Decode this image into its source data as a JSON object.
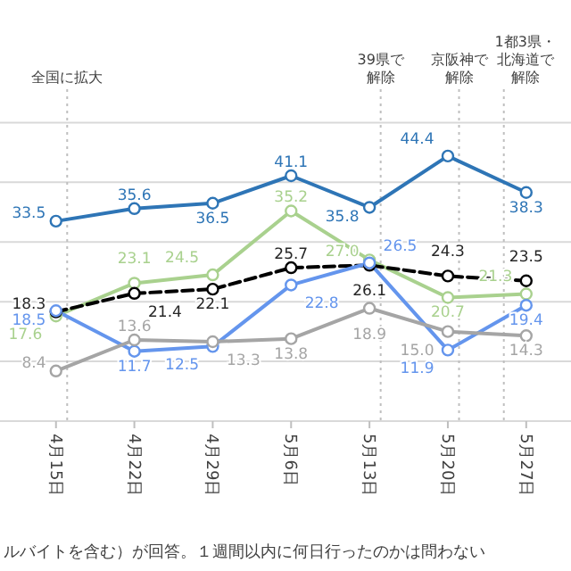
{
  "chart_data": {
    "type": "line",
    "x": [
      "--04-15",
      "--04-22",
      "--04-29",
      "--05-06",
      "--05-13",
      "--05-20",
      "--05-27"
    ],
    "xlim": [
      "--04-10",
      "--05-31"
    ],
    "xticks": [
      {
        "value": "--04-15",
        "label": "4月15日"
      },
      {
        "value": "--04-22",
        "label": "4月22日"
      },
      {
        "value": "--04-29",
        "label": "4月29日"
      },
      {
        "value": "--05-06",
        "label": "5月6日"
      },
      {
        "value": "--05-13",
        "label": "5月13日"
      },
      {
        "value": "--05-20",
        "label": "5月20日"
      },
      {
        "value": "--05-27",
        "label": "5月27日"
      }
    ],
    "ylim": [
      0,
      55
    ],
    "yticks": [
      {
        "value": 0,
        "label": null
      },
      {
        "value": 10,
        "label": null
      },
      {
        "value": 20,
        "label": null
      },
      {
        "value": 30,
        "label": null
      },
      {
        "value": 40,
        "label": null
      },
      {
        "value": 50,
        "label": null
      }
    ],
    "tick_labels": "x",
    "grid": "y",
    "series": [
      {
        "color": "#2e75b6",
        "marker": "circle",
        "line_style": "solid",
        "values": [
          33.5,
          35.6,
          36.5,
          41.1,
          35.8,
          44.4,
          38.3
        ],
        "value_labels": [
          "33.5",
          "35.6",
          "36.5",
          "41.1",
          "35.8",
          "44.4",
          "38.3"
        ]
      },
      {
        "color": "#a9d18e",
        "marker": "circle",
        "line_style": "solid",
        "values": [
          17.6,
          23.1,
          24.5,
          35.2,
          27.0,
          20.7,
          21.3
        ],
        "value_labels": [
          "17.6",
          "23.1",
          "24.5",
          "35.2",
          "27.0",
          "20.7",
          "21.3"
        ]
      },
      {
        "color": "#000000",
        "marker": "circle",
        "line_style": "dashed",
        "values": [
          18.3,
          21.4,
          22.1,
          25.7,
          26.1,
          24.3,
          23.5
        ],
        "value_labels": [
          "18.3",
          "21.4",
          "22.1",
          "25.7",
          "26.1",
          "24.3",
          "23.5"
        ]
      },
      {
        "color": "#6495ed",
        "marker": "circle",
        "line_style": "solid",
        "values": [
          18.5,
          11.7,
          12.5,
          22.8,
          26.5,
          11.9,
          19.4
        ],
        "value_labels": [
          "18.5",
          "11.7",
          "12.5",
          "22.8",
          "26.5",
          "11.9",
          "19.4"
        ]
      },
      {
        "color": "#a5a5a5",
        "marker": "circle",
        "line_style": "solid",
        "values": [
          8.4,
          13.6,
          13.3,
          13.8,
          18.9,
          15.0,
          14.3
        ],
        "value_labels": [
          "8.4",
          "13.6",
          "13.3",
          "13.8",
          "18.9",
          "15.0",
          "14.3"
        ]
      }
    ],
    "ref_lines": [
      {
        "axis": "x",
        "value": "--04-16",
        "label": "全国に拡大",
        "line_style": "dotted",
        "color": "#bfbfbf"
      },
      {
        "axis": "x",
        "value": "--05-14",
        "label": "39県で解除",
        "line_style": "dotted",
        "color": "#bfbfbf"
      },
      {
        "axis": "x",
        "value": "--05-21",
        "label": "京阪神で解除",
        "line_style": "dotted",
        "color": "#bfbfbf"
      },
      {
        "axis": "x",
        "value": "--05-25",
        "label": "1都3県・北海道で解除",
        "line_style": "dotted",
        "color": "#bfbfbf"
      }
    ],
    "annotations": [
      "ルバイトを含む）が回答。１週間以内に何日行ったのかは問わない"
    ]
  }
}
